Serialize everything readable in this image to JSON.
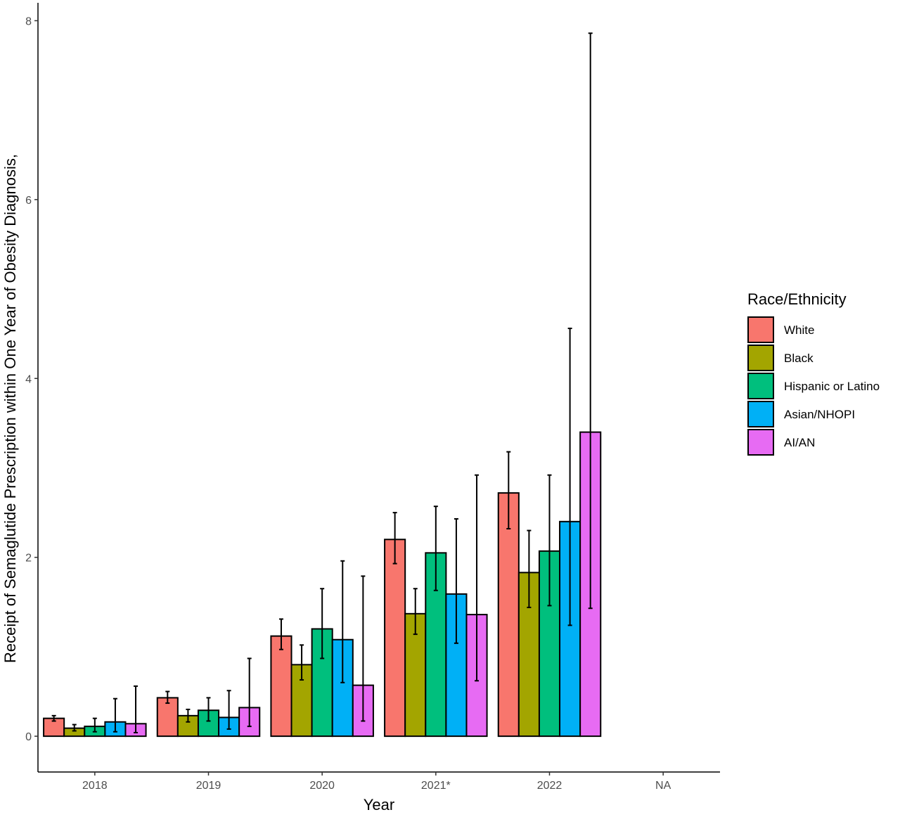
{
  "chart_data": {
    "type": "bar",
    "title": "",
    "xlabel": "Year",
    "ylabel": "Receipt of Semaglutide Prescription within One Year of Obesity Diagnosis,",
    "ylim": [
      -0.4,
      8.2
    ],
    "yticks": [
      0,
      2,
      4,
      6,
      8
    ],
    "categories": [
      "2018",
      "2019",
      "2020",
      "2021*",
      "2022",
      "NA"
    ],
    "grid": false,
    "legend": {
      "title": "Race/Ethnicity",
      "placement": "right"
    },
    "error_bars": true,
    "series": [
      {
        "name": "White",
        "color": "#F8766D",
        "values": [
          0.2,
          0.43,
          1.12,
          2.2,
          2.72,
          null
        ],
        "lower": [
          0.17,
          0.37,
          0.97,
          1.93,
          2.32,
          null
        ],
        "upper": [
          0.23,
          0.5,
          1.31,
          2.5,
          3.18,
          null
        ]
      },
      {
        "name": "Black",
        "color": "#A3A500",
        "values": [
          0.09,
          0.23,
          0.8,
          1.37,
          1.83,
          null
        ],
        "lower": [
          0.06,
          0.16,
          0.63,
          1.14,
          1.44,
          null
        ],
        "upper": [
          0.13,
          0.3,
          1.02,
          1.65,
          2.3,
          null
        ]
      },
      {
        "name": "Hispanic or Latino",
        "color": "#00BF7D",
        "values": [
          0.11,
          0.29,
          1.2,
          2.05,
          2.07,
          null
        ],
        "lower": [
          0.05,
          0.17,
          0.87,
          1.63,
          1.46,
          null
        ],
        "upper": [
          0.2,
          0.43,
          1.65,
          2.57,
          2.92,
          null
        ]
      },
      {
        "name": "Asian/NHOPI",
        "color": "#00B0F6",
        "values": [
          0.16,
          0.21,
          1.08,
          1.59,
          2.4,
          null
        ],
        "lower": [
          0.05,
          0.08,
          0.6,
          1.04,
          1.24,
          null
        ],
        "upper": [
          0.42,
          0.51,
          1.96,
          2.43,
          4.56,
          null
        ]
      },
      {
        "name": "AI/AN",
        "color": "#E76BF3",
        "values": [
          0.14,
          0.32,
          0.57,
          1.36,
          3.4,
          null
        ],
        "lower": [
          0.04,
          0.11,
          0.17,
          0.62,
          1.43,
          null
        ],
        "upper": [
          0.56,
          0.87,
          1.79,
          2.92,
          7.86,
          null
        ]
      }
    ]
  }
}
